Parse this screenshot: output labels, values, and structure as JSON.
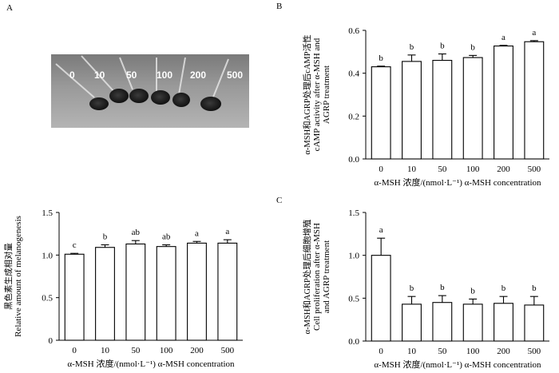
{
  "panel_photo": {
    "panel_letter": "A",
    "tube_labels": [
      "0",
      "10",
      "50",
      "100",
      "200",
      "500"
    ]
  },
  "chart_data": [
    {
      "id": "melanogenesis",
      "type": "bar",
      "panel_letter": "",
      "categories": [
        "0",
        "10",
        "50",
        "100",
        "200",
        "500"
      ],
      "values": [
        1.01,
        1.09,
        1.13,
        1.1,
        1.14,
        1.14
      ],
      "errors": [
        0.01,
        0.03,
        0.04,
        0.02,
        0.02,
        0.04
      ],
      "letters": [
        "c",
        "b",
        "ab",
        "ab",
        "a",
        "a"
      ],
      "ylim": [
        0,
        1.5
      ],
      "yticks": [
        "0",
        "0.5",
        "1.0",
        "1.5"
      ],
      "ylabel_cn": "黑色素生成相对量",
      "ylabel_en": "Relative amount of melanogenesis",
      "xlabel_cn": "α-MSH 浓度/(nmol·L⁻¹)",
      "xlabel_en": "α-MSH concentration"
    },
    {
      "id": "camp",
      "type": "bar",
      "panel_letter": "B",
      "categories": [
        "0",
        "10",
        "50",
        "100",
        "200",
        "500"
      ],
      "values": [
        0.43,
        0.455,
        0.46,
        0.473,
        0.527,
        0.547
      ],
      "errors": [
        0.003,
        0.03,
        0.03,
        0.01,
        0.003,
        0.005
      ],
      "letters": [
        "b",
        "b",
        "b",
        "b",
        "a",
        "a"
      ],
      "ylim": [
        0,
        0.6
      ],
      "yticks": [
        "0.0",
        "0.2",
        "0.4",
        "0.6"
      ],
      "ylabel_cn": "α-MSH和AGRP处理后cAMP活性",
      "ylabel_en_1": "cAMP activity after α-MSH and",
      "ylabel_en_2": "AGRP treatment",
      "xlabel_cn": "α-MSH 浓度/(nmol·L⁻¹)",
      "xlabel_en": "α-MSH concentration"
    },
    {
      "id": "proliferation",
      "type": "bar",
      "panel_letter": "C",
      "categories": [
        "0",
        "10",
        "50",
        "100",
        "200",
        "500"
      ],
      "values": [
        1.0,
        0.43,
        0.45,
        0.43,
        0.44,
        0.42
      ],
      "errors": [
        0.2,
        0.09,
        0.08,
        0.06,
        0.08,
        0.1
      ],
      "letters": [
        "a",
        "b",
        "b",
        "b",
        "b",
        "b"
      ],
      "ylim": [
        0,
        1.5
      ],
      "yticks": [
        "0.0",
        "0.5",
        "1.0",
        "1.5"
      ],
      "ylabel_cn": "α-MSH和AGRP处理后细胞增殖",
      "ylabel_en_1": "Cell proliferation after α-MSH",
      "ylabel_en_2": "and AGRP treatment",
      "xlabel_cn": "α-MSH 浓度/(nmol·L⁻¹)",
      "xlabel_en": "α-MSH concentration"
    }
  ]
}
